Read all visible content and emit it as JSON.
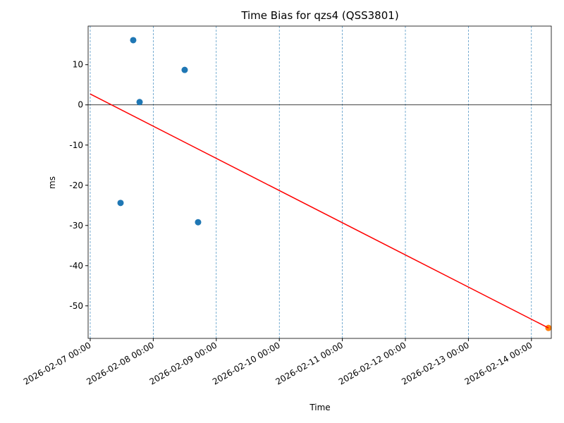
{
  "chart_data": {
    "type": "scatter",
    "title": "Time Bias for qzs4 (QSS3801)",
    "xlabel": "Time",
    "ylabel": "ms",
    "xlim": [
      "2026-02-06 23:12",
      "2026-02-14 07:34"
    ],
    "xticks": [
      "2026-02-07 00:00",
      "2026-02-08 00:00",
      "2026-02-09 00:00",
      "2026-02-10 00:00",
      "2026-02-11 00:00",
      "2026-02-12 00:00",
      "2026-02-13 00:00",
      "2026-02-14 00:00"
    ],
    "ylim": [
      -58.1,
      19.6
    ],
    "yticks": [
      10,
      0,
      -10,
      -20,
      -30,
      -40,
      -50
    ],
    "grid": "x",
    "hline": 0,
    "series": [
      {
        "type": "scatter",
        "color": "#1f77b4",
        "x": [
          "2026-02-07 11:33",
          "2026-02-07 16:22",
          "2026-02-07 18:48",
          "2026-02-08 11:58",
          "2026-02-08 17:04"
        ],
        "values": [
          -24.4,
          16.1,
          0.7,
          8.7,
          -29.2
        ]
      },
      {
        "type": "scatter",
        "color": "#ff7f0e",
        "x": [
          "2026-02-14 06:29"
        ],
        "values": [
          -55.5
        ]
      },
      {
        "type": "line",
        "color": "#ff0000",
        "x": [
          "2026-02-07 00:00",
          "2026-02-14 06:29"
        ],
        "values": [
          2.7,
          -55.5
        ]
      }
    ]
  }
}
